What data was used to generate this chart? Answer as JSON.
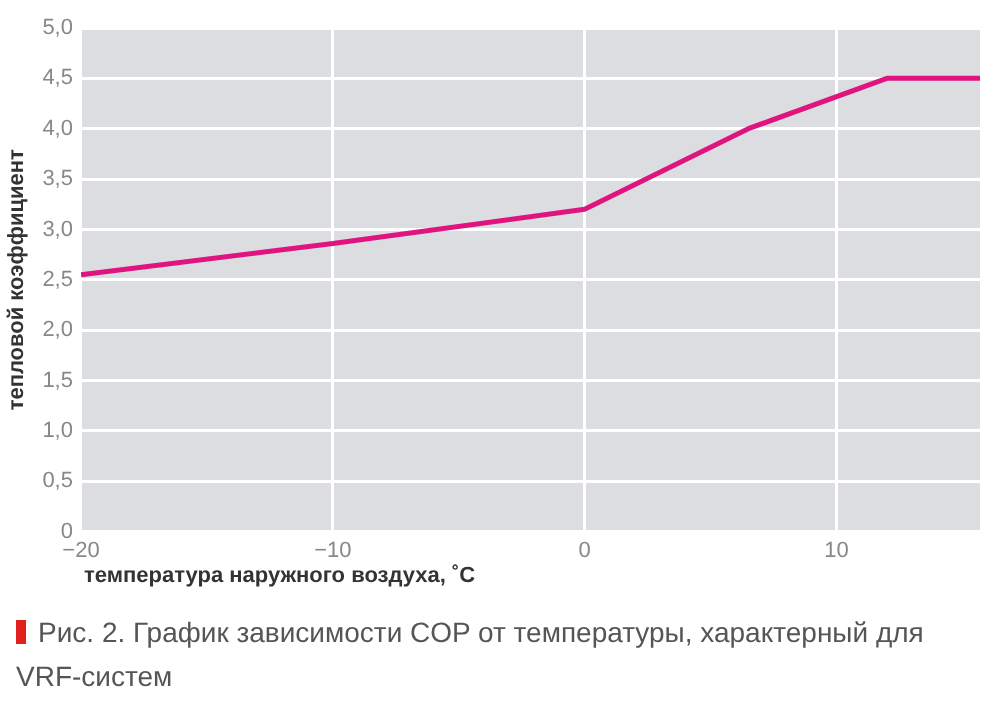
{
  "chart_data": {
    "type": "line",
    "xlabel": "температура наружного воздуха, ˚С",
    "ylabel": "тепловой коэффициент",
    "annotations": [
      "Рис. 2. График зависимости COP от температуры, характерный для VRF-систем"
    ],
    "x": [
      -20,
      -10,
      0,
      6.5,
      12,
      15.7
    ],
    "series": [
      {
        "color": "#e0147f",
        "values": [
          2.55,
          2.86,
          3.2,
          4.0,
          4.5,
          4.5
        ]
      }
    ],
    "xlim": [
      -20,
      15.7
    ],
    "xticks": [
      {
        "value": -20,
        "label": "−20"
      },
      {
        "value": -10,
        "label": "−10"
      },
      0,
      10
    ],
    "ylim": [
      0,
      5
    ],
    "yticks": [
      0,
      {
        "value": 0.5,
        "label": "0,5"
      },
      {
        "value": 1,
        "label": "1,0"
      },
      {
        "value": 1.5,
        "label": "1,5"
      },
      {
        "value": 2,
        "label": "2,0"
      },
      {
        "value": 2.5,
        "label": "2,5"
      },
      {
        "value": 3,
        "label": "3,0"
      },
      {
        "value": 3.5,
        "label": "3,5"
      },
      {
        "value": 4,
        "label": "4,0"
      },
      {
        "value": 4.5,
        "label": "4,5"
      },
      {
        "value": 5,
        "label": "5,0"
      }
    ],
    "grid": true,
    "legend": false,
    "marker": "none",
    "line_style": "solid"
  }
}
